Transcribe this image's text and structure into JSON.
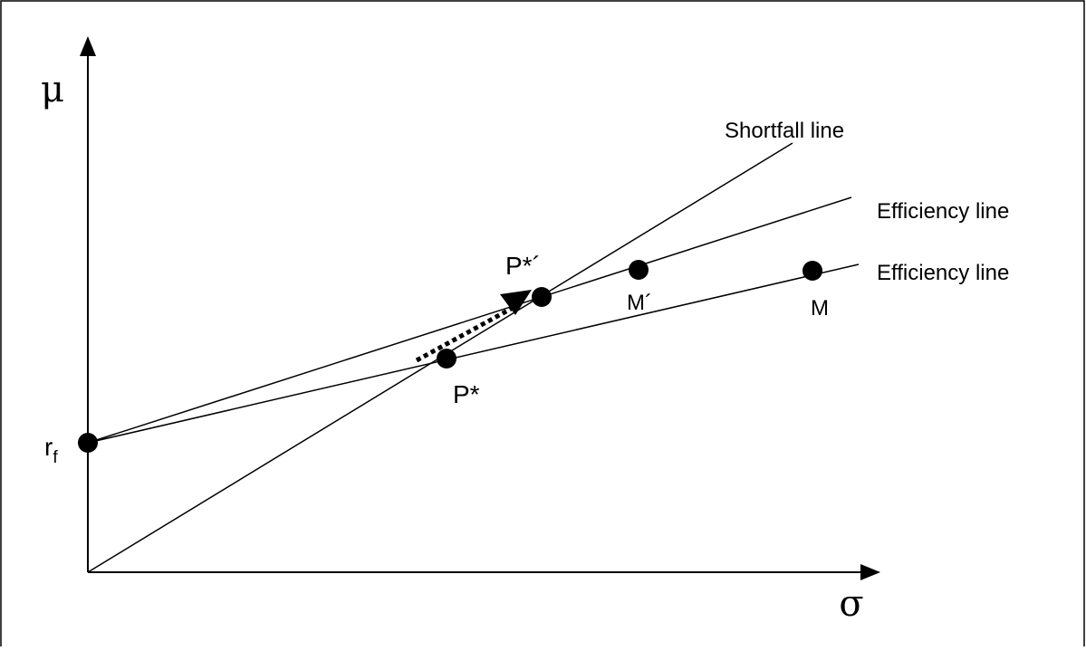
{
  "diagram": {
    "axes": {
      "y_symbol": "μ",
      "x_symbol": "σ"
    },
    "lines": {
      "shortfall_label": "Shortfall line",
      "efficiency_upper_label": "Efficiency line",
      "efficiency_lower_label": "Efficiency line"
    },
    "points": {
      "rf_main": "r",
      "rf_sub": "f",
      "p_star": "P*",
      "p_star_prime": "P*´",
      "m_prime": "M´",
      "m": "M"
    },
    "colors": {
      "ink": "#000000",
      "background": "#ffffff"
    }
  }
}
